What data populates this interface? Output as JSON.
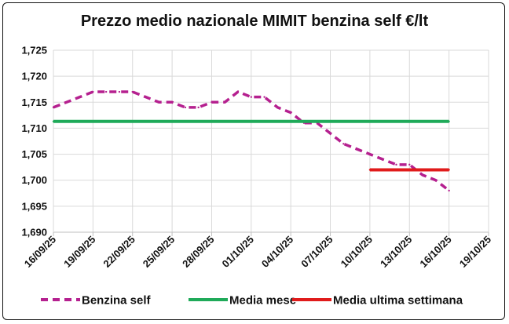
{
  "chart_data": {
    "type": "line",
    "title": "Prezzo medio nazionale MIMIT benzina self €/lt",
    "ylim": [
      1.69,
      1.725
    ],
    "yticks": [
      "1,690",
      "1,695",
      "1,700",
      "1,705",
      "1,710",
      "1,715",
      "1,720",
      "1,725"
    ],
    "ytick_values": [
      1.69,
      1.695,
      1.7,
      1.705,
      1.71,
      1.715,
      1.72,
      1.725
    ],
    "xticks": [
      "16/09/25",
      "19/09/25",
      "22/09/25",
      "25/09/25",
      "28/09/25",
      "01/10/25",
      "04/10/25",
      "07/10/25",
      "10/10/25",
      "13/10/25",
      "16/10/25",
      "19/10/25"
    ],
    "x_start": "16/09/25",
    "x_end": "19/10/25",
    "grid": true,
    "legend_position": "bottom",
    "series": [
      {
        "name": "Benzina self",
        "color": "#b5208f",
        "style": "dashed",
        "x": [
          "16/09/25",
          "17/09/25",
          "18/09/25",
          "19/09/25",
          "20/09/25",
          "21/09/25",
          "22/09/25",
          "23/09/25",
          "24/09/25",
          "25/09/25",
          "26/09/25",
          "27/09/25",
          "28/09/25",
          "29/09/25",
          "30/09/25",
          "01/10/25",
          "02/10/25",
          "03/10/25",
          "04/10/25",
          "05/10/25",
          "06/10/25",
          "07/10/25",
          "08/10/25",
          "09/10/25",
          "10/10/25",
          "11/10/25",
          "12/10/25",
          "13/10/25",
          "14/10/25",
          "15/10/25",
          "16/10/25"
        ],
        "values": [
          1.714,
          1.715,
          1.716,
          1.717,
          1.717,
          1.717,
          1.717,
          1.716,
          1.715,
          1.715,
          1.714,
          1.714,
          1.715,
          1.715,
          1.717,
          1.716,
          1.716,
          1.714,
          1.713,
          1.711,
          1.711,
          1.709,
          1.707,
          1.706,
          1.705,
          1.704,
          1.703,
          1.703,
          1.701,
          1.7,
          1.698
        ]
      },
      {
        "name": "Media mese",
        "color": "#1faa59",
        "style": "solid",
        "x": [
          "16/09/25",
          "16/10/25"
        ],
        "values": [
          1.7113,
          1.7113
        ]
      },
      {
        "name": "Media ultima settimana",
        "color": "#e01b1b",
        "style": "solid",
        "x": [
          "10/10/25",
          "16/10/25"
        ],
        "values": [
          1.702,
          1.702
        ]
      }
    ]
  }
}
